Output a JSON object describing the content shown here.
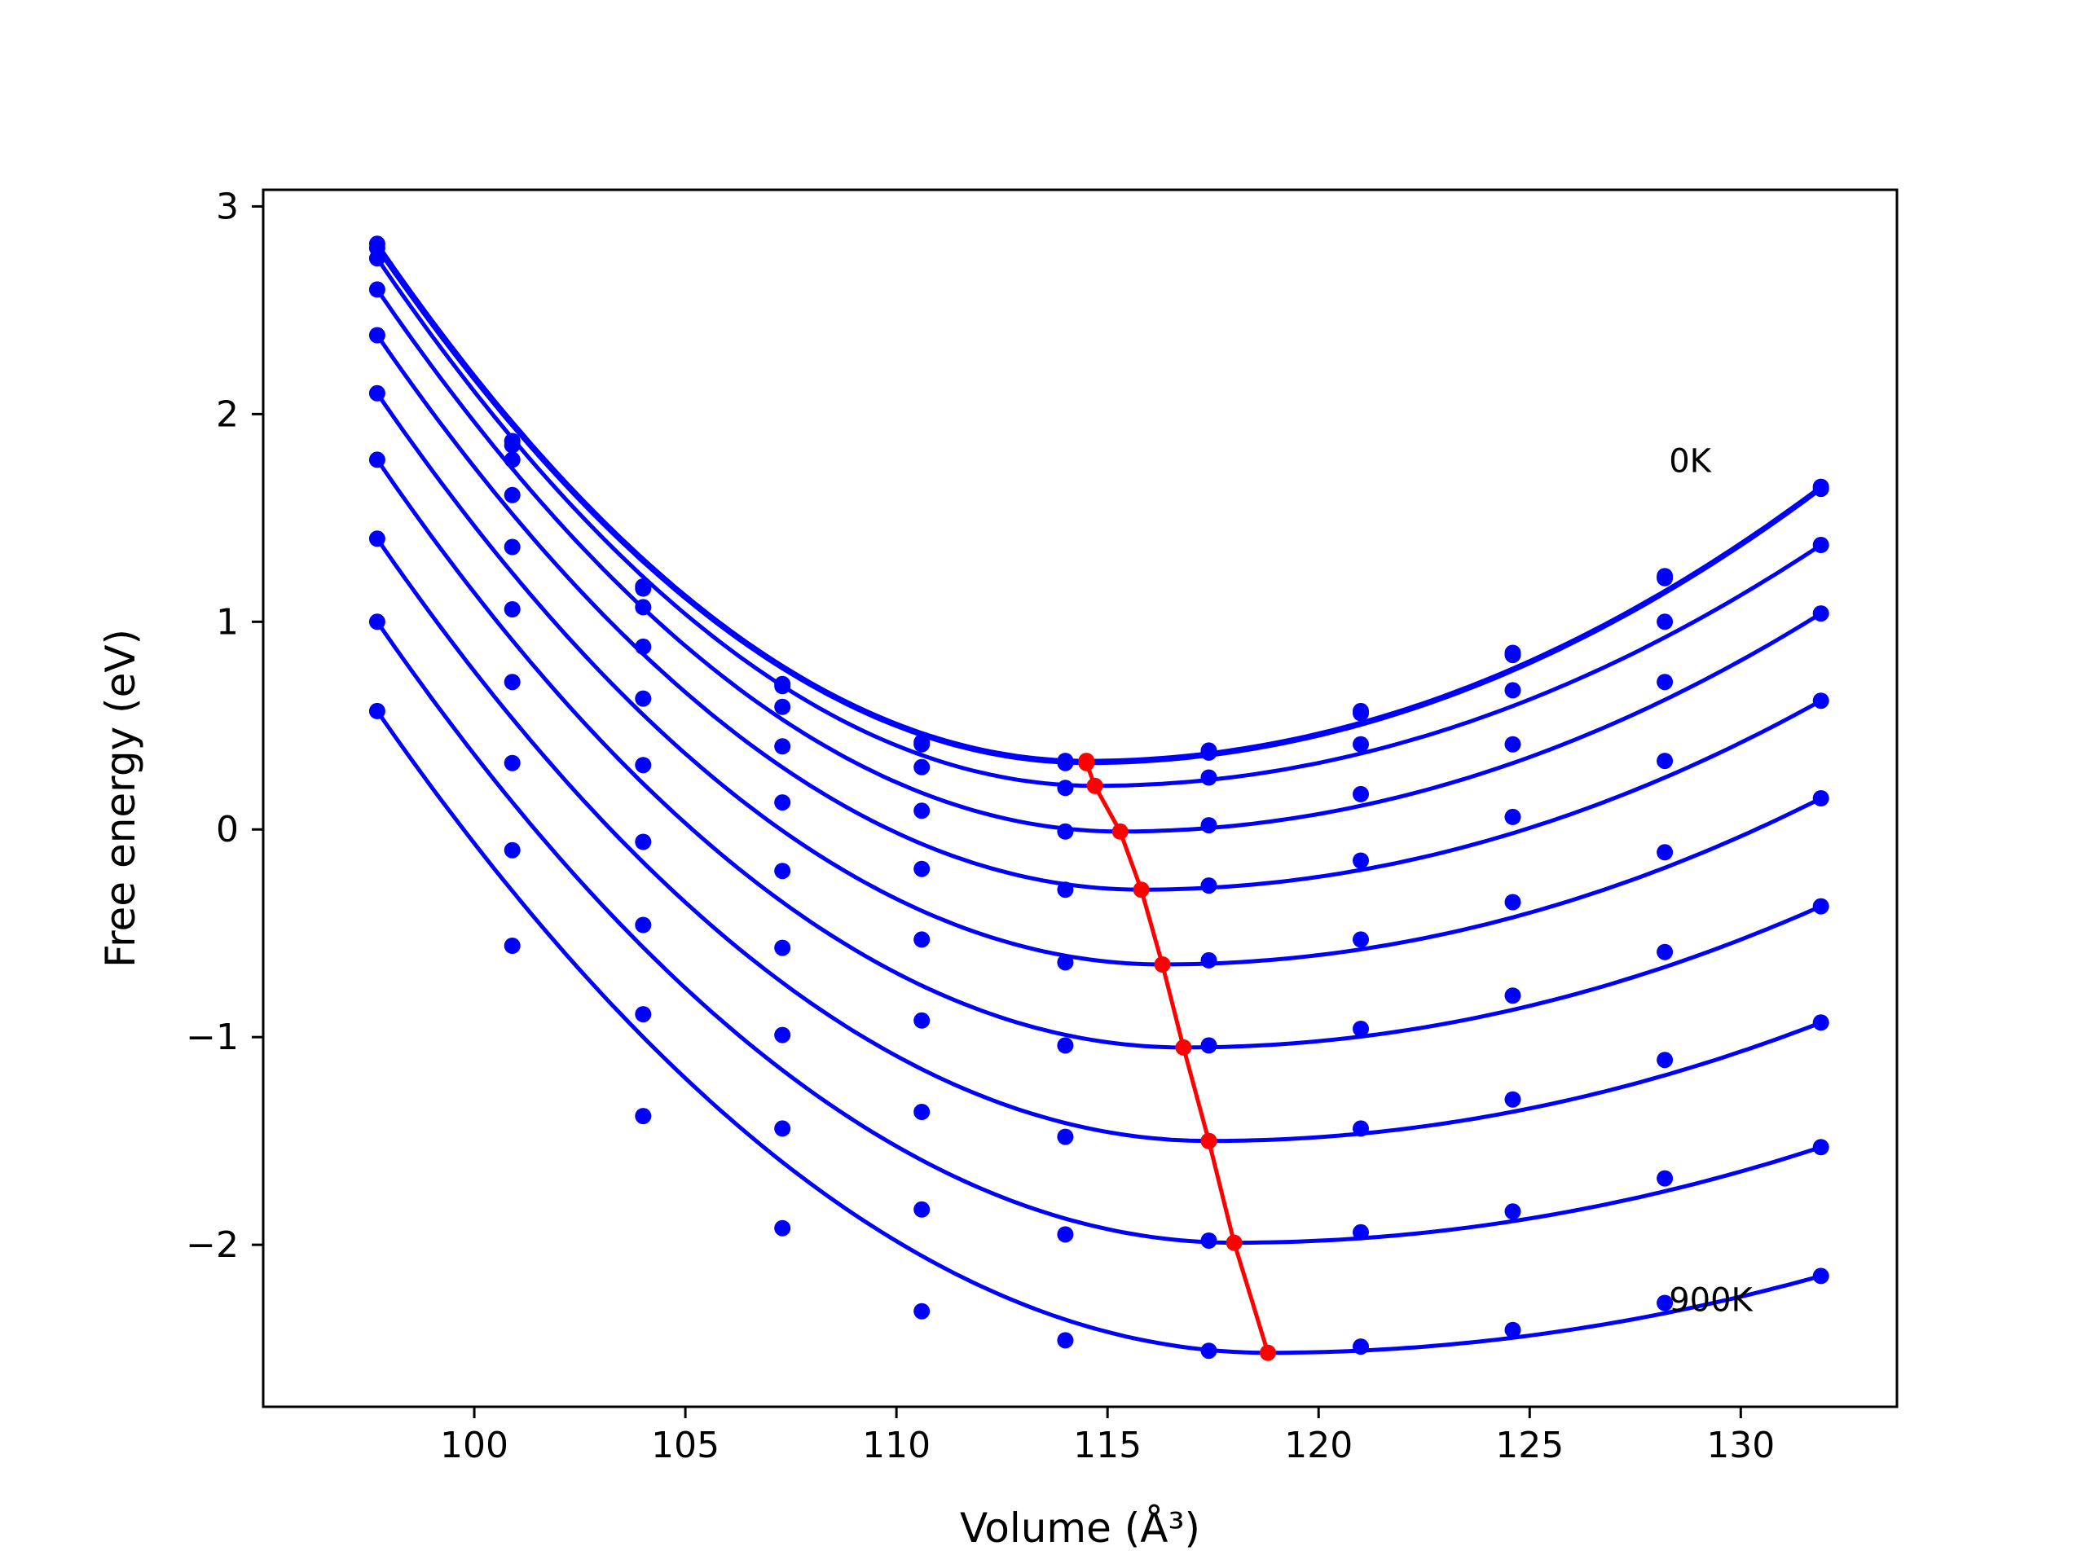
{
  "chart_data": {
    "type": "line",
    "xlabel": "Volume (Å³)",
    "ylabel": "Free energy (eV)",
    "xlim": [
      95.0,
      133.7
    ],
    "ylim": [
      -2.78,
      3.08
    ],
    "xticks": [
      100,
      105,
      110,
      115,
      120,
      125,
      130
    ],
    "yticks": [
      -2,
      -1,
      0,
      1,
      2,
      3
    ],
    "xtick_labels": [
      "100",
      "105",
      "110",
      "115",
      "120",
      "125",
      "130"
    ],
    "ytick_labels": [
      "−2",
      "−1",
      "0",
      "1",
      "2",
      "3"
    ],
    "grid": false,
    "legend": "none",
    "volume": [
      97.7,
      100.9,
      104.0,
      107.3,
      110.6,
      114.0,
      117.4,
      121.0,
      124.6,
      128.2,
      131.9
    ],
    "curve_color": "#0000ff",
    "min_color": "#ff0000",
    "annotations": [
      {
        "text": "0K",
        "x": 128.3,
        "y": 1.72
      },
      {
        "text": "900K",
        "x": 128.3,
        "y": -2.32
      }
    ],
    "series": [
      {
        "values": [
          2.82,
          1.87,
          1.17,
          0.7,
          0.42,
          0.33,
          0.38,
          0.57,
          0.85,
          1.22,
          1.65
        ],
        "min": {
          "x": 114.5,
          "y": 0.33
        }
      },
      {
        "values": [
          2.8,
          1.85,
          1.16,
          0.69,
          0.41,
          0.32,
          0.37,
          0.56,
          0.84,
          1.21,
          1.64
        ],
        "min": {
          "x": 114.5,
          "y": 0.32
        }
      },
      {
        "values": [
          2.75,
          1.78,
          1.07,
          0.59,
          0.3,
          0.2,
          0.25,
          0.41,
          0.67,
          1.0,
          1.37
        ],
        "min": {
          "x": 114.7,
          "y": 0.21
        }
      },
      {
        "values": [
          2.6,
          1.61,
          0.88,
          0.4,
          0.09,
          -0.01,
          0.02,
          0.17,
          0.41,
          0.71,
          1.04
        ],
        "min": {
          "x": 115.3,
          "y": -0.01
        }
      },
      {
        "values": [
          2.38,
          1.36,
          0.63,
          0.13,
          -0.19,
          -0.29,
          -0.27,
          -0.15,
          0.06,
          0.33,
          0.62
        ],
        "min": {
          "x": 115.8,
          "y": -0.29
        }
      },
      {
        "values": [
          2.1,
          1.06,
          0.31,
          -0.2,
          -0.53,
          -0.64,
          -0.63,
          -0.53,
          -0.35,
          -0.11,
          0.15
        ],
        "min": {
          "x": 116.3,
          "y": -0.65
        }
      },
      {
        "values": [
          1.78,
          0.71,
          -0.06,
          -0.57,
          -0.92,
          -1.04,
          -1.04,
          -0.96,
          -0.8,
          -0.59,
          -0.37
        ],
        "min": {
          "x": 116.8,
          "y": -1.05
        }
      },
      {
        "values": [
          1.4,
          0.32,
          -0.46,
          -0.99,
          -1.36,
          -1.48,
          -1.5,
          -1.44,
          -1.3,
          -1.11,
          -0.93
        ],
        "min": {
          "x": 117.4,
          "y": -1.5
        }
      },
      {
        "values": [
          1.0,
          -0.1,
          -0.89,
          -1.44,
          -1.83,
          -1.95,
          -1.98,
          -1.94,
          -1.84,
          -1.68,
          -1.53
        ],
        "min": {
          "x": 118.0,
          "y": -1.99
        }
      },
      {
        "values": [
          0.57,
          -0.56,
          -1.38,
          -1.92,
          -2.32,
          -2.46,
          -2.51,
          -2.49,
          -2.41,
          -2.28,
          -2.15
        ],
        "min": {
          "x": 118.8,
          "y": -2.52
        }
      }
    ]
  }
}
